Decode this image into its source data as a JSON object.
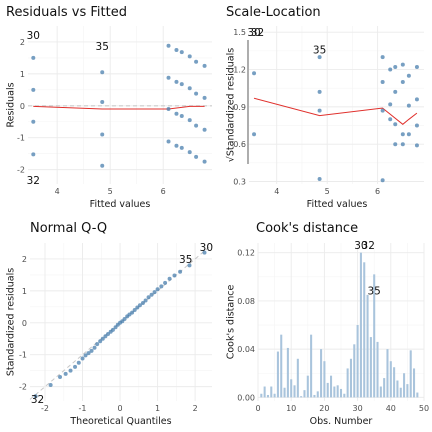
{
  "chart_data": [
    {
      "type": "scatter",
      "title": "Residuals vs Fitted",
      "xlabel": "Fitted values",
      "ylabel": "Residuals",
      "xlim": [
        3.45,
        6.92
      ],
      "ylim": [
        -2.45,
        2.5
      ],
      "xticks": [
        4,
        5,
        6
      ],
      "yticks": [
        -2,
        -1,
        0,
        1,
        2
      ],
      "points": [
        [
          3.55,
          1.5
        ],
        [
          3.55,
          0.5
        ],
        [
          3.55,
          -0.5
        ],
        [
          3.55,
          -1.52
        ],
        [
          4.85,
          1.05
        ],
        [
          4.85,
          0.12
        ],
        [
          4.85,
          -0.9
        ],
        [
          4.85,
          -1.88
        ],
        [
          6.1,
          1.88
        ],
        [
          6.1,
          0.88
        ],
        [
          6.1,
          -0.1
        ],
        [
          6.1,
          -1.12
        ],
        [
          6.25,
          1.75
        ],
        [
          6.25,
          0.75
        ],
        [
          6.25,
          -0.25
        ],
        [
          6.25,
          -1.25
        ],
        [
          6.35,
          1.68
        ],
        [
          6.35,
          0.68
        ],
        [
          6.35,
          -0.32
        ],
        [
          6.35,
          -1.32
        ],
        [
          6.5,
          1.55
        ],
        [
          6.5,
          0.55
        ],
        [
          6.5,
          -0.45
        ],
        [
          6.5,
          -1.45
        ],
        [
          6.62,
          1.38
        ],
        [
          6.62,
          0.38
        ],
        [
          6.62,
          -0.62
        ],
        [
          6.62,
          -1.6
        ],
        [
          6.78,
          1.25
        ],
        [
          6.78,
          0.25
        ],
        [
          6.78,
          -0.75
        ],
        [
          6.78,
          -1.75
        ]
      ],
      "smooth": [
        [
          3.55,
          -0.02
        ],
        [
          4.85,
          -0.1
        ],
        [
          6.1,
          -0.1
        ],
        [
          6.5,
          -0.02
        ],
        [
          6.78,
          -0.02
        ]
      ],
      "annotations": [
        {
          "text": "30",
          "x": 3.55,
          "y": 2.22
        },
        {
          "text": "35",
          "x": 4.85,
          "y": 1.88
        },
        {
          "text": "32",
          "x": 3.55,
          "y": -2.32
        }
      ]
    },
    {
      "type": "scatter",
      "title": "Scale-Location",
      "xlabel": "Fitted values",
      "ylabel": "√Standardized residuals",
      "xlim": [
        3.45,
        6.92
      ],
      "ylim": [
        0.28,
        1.55
      ],
      "xticks": [
        4,
        5,
        6
      ],
      "yticks": [
        0.3,
        0.6,
        0.9,
        1.2,
        1.5
      ],
      "points": [
        [
          3.55,
          1.17
        ],
        [
          3.55,
          0.68
        ],
        [
          4.85,
          1.3
        ],
        [
          4.85,
          1.02
        ],
        [
          4.85,
          0.87
        ],
        [
          4.85,
          0.32
        ],
        [
          6.1,
          1.3
        ],
        [
          6.1,
          1.1
        ],
        [
          6.1,
          0.87
        ],
        [
          6.1,
          0.31
        ],
        [
          6.25,
          1.2
        ],
        [
          6.25,
          0.92
        ],
        [
          6.25,
          0.8
        ],
        [
          6.35,
          1.22
        ],
        [
          6.35,
          1.02
        ],
        [
          6.35,
          0.76
        ],
        [
          6.35,
          0.6
        ],
        [
          6.5,
          1.24
        ],
        [
          6.5,
          1.1
        ],
        [
          6.5,
          0.68
        ],
        [
          6.5,
          0.6
        ],
        [
          6.62,
          1.15
        ],
        [
          6.62,
          0.91
        ],
        [
          6.62,
          0.68
        ],
        [
          6.78,
          1.22
        ],
        [
          6.78,
          0.96
        ],
        [
          6.78,
          0.75
        ],
        [
          6.78,
          0.59
        ]
      ],
      "smooth": [
        [
          3.55,
          0.97
        ],
        [
          4.85,
          0.83
        ],
        [
          6.1,
          0.89
        ],
        [
          6.5,
          0.76
        ],
        [
          6.62,
          0.8
        ],
        [
          6.78,
          0.85
        ]
      ],
      "annotations": [
        {
          "text": "30",
          "x": 3.55,
          "y": 1.5
        },
        {
          "text": "32",
          "x": 3.62,
          "y": 1.5
        },
        {
          "text": "35",
          "x": 4.85,
          "y": 1.36
        }
      ]
    },
    {
      "type": "scatter",
      "title": "Normal Q-Q",
      "xlabel": "Theoretical Quantiles",
      "ylabel": "Standardized residuals",
      "xlim": [
        -2.4,
        2.45
      ],
      "ylim": [
        -2.45,
        2.5
      ],
      "xticks": [
        -2,
        -1,
        0,
        1,
        2
      ],
      "yticks": [
        -2,
        -1,
        0,
        1,
        2
      ],
      "points": [
        [
          -2.25,
          -2.3
        ],
        [
          -1.85,
          -1.95
        ],
        [
          -1.6,
          -1.7
        ],
        [
          -1.45,
          -1.6
        ],
        [
          -1.32,
          -1.5
        ],
        [
          -1.2,
          -1.38
        ],
        [
          -1.1,
          -1.25
        ],
        [
          -1.0,
          -1.12
        ],
        [
          -0.92,
          -1.02
        ],
        [
          -0.84,
          -0.95
        ],
        [
          -0.76,
          -0.88
        ],
        [
          -0.68,
          -0.78
        ],
        [
          -0.61,
          -0.67
        ],
        [
          -0.53,
          -0.58
        ],
        [
          -0.46,
          -0.5
        ],
        [
          -0.39,
          -0.42
        ],
        [
          -0.32,
          -0.35
        ],
        [
          -0.25,
          -0.28
        ],
        [
          -0.19,
          -0.22
        ],
        [
          -0.12,
          -0.14
        ],
        [
          -0.06,
          -0.06
        ],
        [
          0.0,
          0.0
        ],
        [
          0.06,
          0.05
        ],
        [
          0.12,
          0.12
        ],
        [
          0.19,
          0.2
        ],
        [
          0.25,
          0.26
        ],
        [
          0.32,
          0.32
        ],
        [
          0.39,
          0.4
        ],
        [
          0.46,
          0.48
        ],
        [
          0.53,
          0.55
        ],
        [
          0.61,
          0.62
        ],
        [
          0.68,
          0.7
        ],
        [
          0.76,
          0.8
        ],
        [
          0.84,
          0.88
        ],
        [
          0.92,
          0.96
        ],
        [
          1.0,
          1.05
        ],
        [
          1.1,
          1.14
        ],
        [
          1.2,
          1.25
        ],
        [
          1.32,
          1.38
        ],
        [
          1.45,
          1.48
        ],
        [
          1.6,
          1.6
        ],
        [
          1.85,
          1.8
        ],
        [
          2.25,
          2.2
        ]
      ],
      "line": [
        [
          -2.4,
          -2.4
        ],
        [
          2.45,
          2.45
        ]
      ],
      "annotations": [
        {
          "text": "30",
          "x": 2.3,
          "y": 2.38
        },
        {
          "text": "35",
          "x": 1.75,
          "y": 2.0
        },
        {
          "text": "32",
          "x": -2.2,
          "y": -2.38
        }
      ]
    },
    {
      "type": "bar",
      "title": "Cook's distance",
      "xlabel": "Obs. Number",
      "ylabel": "Cook's distance",
      "xlim": [
        0,
        50
      ],
      "ylim": [
        -0.003,
        0.128
      ],
      "xticks": [
        0,
        10,
        20,
        30,
        40,
        50
      ],
      "ytick_values": [
        0.0,
        0.04,
        0.08,
        0.12
      ],
      "ytick_labels": [
        "0.00",
        "0.04",
        "0.08",
        "0.12"
      ],
      "values": [
        0.003,
        0.009,
        0.002,
        0.009,
        0.003,
        0.038,
        0.052,
        0.008,
        0.041,
        0.015,
        0.01,
        0.032,
        0.001,
        0.006,
        0.018,
        0.052,
        0.002,
        0.005,
        0.04,
        0.03,
        0.012,
        0.018,
        0.009,
        0.01,
        0.007,
        0.003,
        0.024,
        0.032,
        0.044,
        0.06,
        0.12,
        0.112,
        0.085,
        0.05,
        0.102,
        0.046,
        0.009,
        0.016,
        0.04,
        0.03,
        0.025,
        0.014,
        0.008,
        0.02,
        0.011,
        0.039,
        0.024,
        0.004
      ],
      "annotations": [
        {
          "text": "30",
          "x": 31.0,
          "y": 0.1265
        },
        {
          "text": "32",
          "x": 33.2,
          "y": 0.1265
        },
        {
          "text": "35",
          "x": 35.0,
          "y": 0.0885
        }
      ]
    }
  ]
}
